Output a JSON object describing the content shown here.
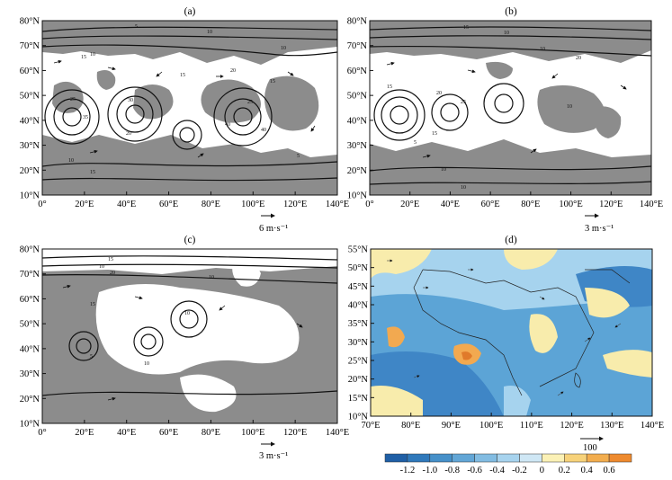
{
  "panels": {
    "a": {
      "label": "(a)",
      "lon_ticks": [
        "0°",
        "20°E",
        "40°E",
        "60°E",
        "80°E",
        "100°E",
        "120°E",
        "140°E"
      ],
      "lat_ticks": [
        "80°N",
        "70°N",
        "60°N",
        "50°N",
        "40°N",
        "30°N",
        "20°N",
        "10°N"
      ],
      "lat_values": [
        80,
        70,
        60,
        50,
        40,
        30,
        20,
        10
      ],
      "lon_values": [
        0,
        20,
        40,
        60,
        80,
        100,
        120,
        140
      ],
      "contour_labels": [
        "5",
        "10",
        "10",
        "10",
        "15",
        "15",
        "15",
        "20",
        "20",
        "25",
        "25",
        "30",
        "35",
        "40",
        "40",
        "10",
        "5",
        "15"
      ],
      "vector_reference": "6 m·s⁻¹"
    },
    "b": {
      "label": "(b)",
      "lon_ticks": [
        "0°",
        "20°E",
        "40°E",
        "60°E",
        "80°E",
        "100°E",
        "120°E",
        "140°E"
      ],
      "lat_ticks": [
        "80°N",
        "70°N",
        "60°N",
        "50°N",
        "40°N",
        "30°N",
        "20°N",
        "10°N"
      ],
      "lat_values": [
        80,
        70,
        60,
        50,
        40,
        30,
        20,
        10
      ],
      "lon_values": [
        0,
        20,
        40,
        60,
        80,
        100,
        120,
        140
      ],
      "contour_labels": [
        "15",
        "10",
        "10",
        "20",
        "15",
        "20",
        "25",
        "15",
        "10",
        "10",
        "10",
        "5"
      ],
      "vector_reference": "3 m·s⁻¹"
    },
    "c": {
      "label": "(c)",
      "lon_ticks": [
        "0°",
        "20°E",
        "40°E",
        "60°E",
        "80°E",
        "100°E",
        "120°E",
        "140°E"
      ],
      "lat_ticks": [
        "80°N",
        "70°N",
        "60°N",
        "50°N",
        "40°N",
        "30°N",
        "20°N",
        "10°N"
      ],
      "lat_values": [
        80,
        70,
        60,
        50,
        40,
        30,
        20,
        10
      ],
      "lon_values": [
        0,
        20,
        40,
        60,
        80,
        100,
        120,
        140
      ],
      "contour_labels": [
        "10",
        "15",
        "20",
        "10",
        "15",
        "10",
        "5",
        "10"
      ],
      "vector_reference": "3 m·s⁻¹"
    },
    "d": {
      "label": "(d)",
      "lon_ticks": [
        "70°E",
        "80°E",
        "90°E",
        "100°E",
        "110°E",
        "120°E",
        "130°E",
        "140°E"
      ],
      "lat_ticks": [
        "55°N",
        "50°N",
        "45°N",
        "40°N",
        "35°N",
        "30°N",
        "25°N",
        "20°N",
        "15°N",
        "10°N"
      ],
      "lat_values": [
        55,
        50,
        45,
        40,
        35,
        30,
        25,
        20,
        15,
        10
      ],
      "lon_values": [
        70,
        80,
        90,
        100,
        110,
        120,
        130,
        140
      ],
      "vector_reference": "100",
      "colorbar": {
        "labels": [
          "-1.2",
          "-1.0",
          "-0.8",
          "-0.6",
          "-0.4",
          "-0.2",
          "0",
          "0.2",
          "0.4",
          "0.6"
        ],
        "colors": [
          "#1f5fa6",
          "#2f79bb",
          "#4690c9",
          "#62a6d6",
          "#82bce2",
          "#a7d3ee",
          "#cfe7f5",
          "#fbf1b6",
          "#f7d27a",
          "#f2ad4e",
          "#ee8a2e"
        ]
      }
    }
  },
  "colors": {
    "shade_gray": "#8c8c8c",
    "ocean_blue": "#5ca4d6",
    "light_blue": "#a6d3ee",
    "mid_blue": "#3f86c6",
    "yellow": "#f8ecac",
    "orange": "#f2a950",
    "dark_orange": "#e07a2a"
  }
}
